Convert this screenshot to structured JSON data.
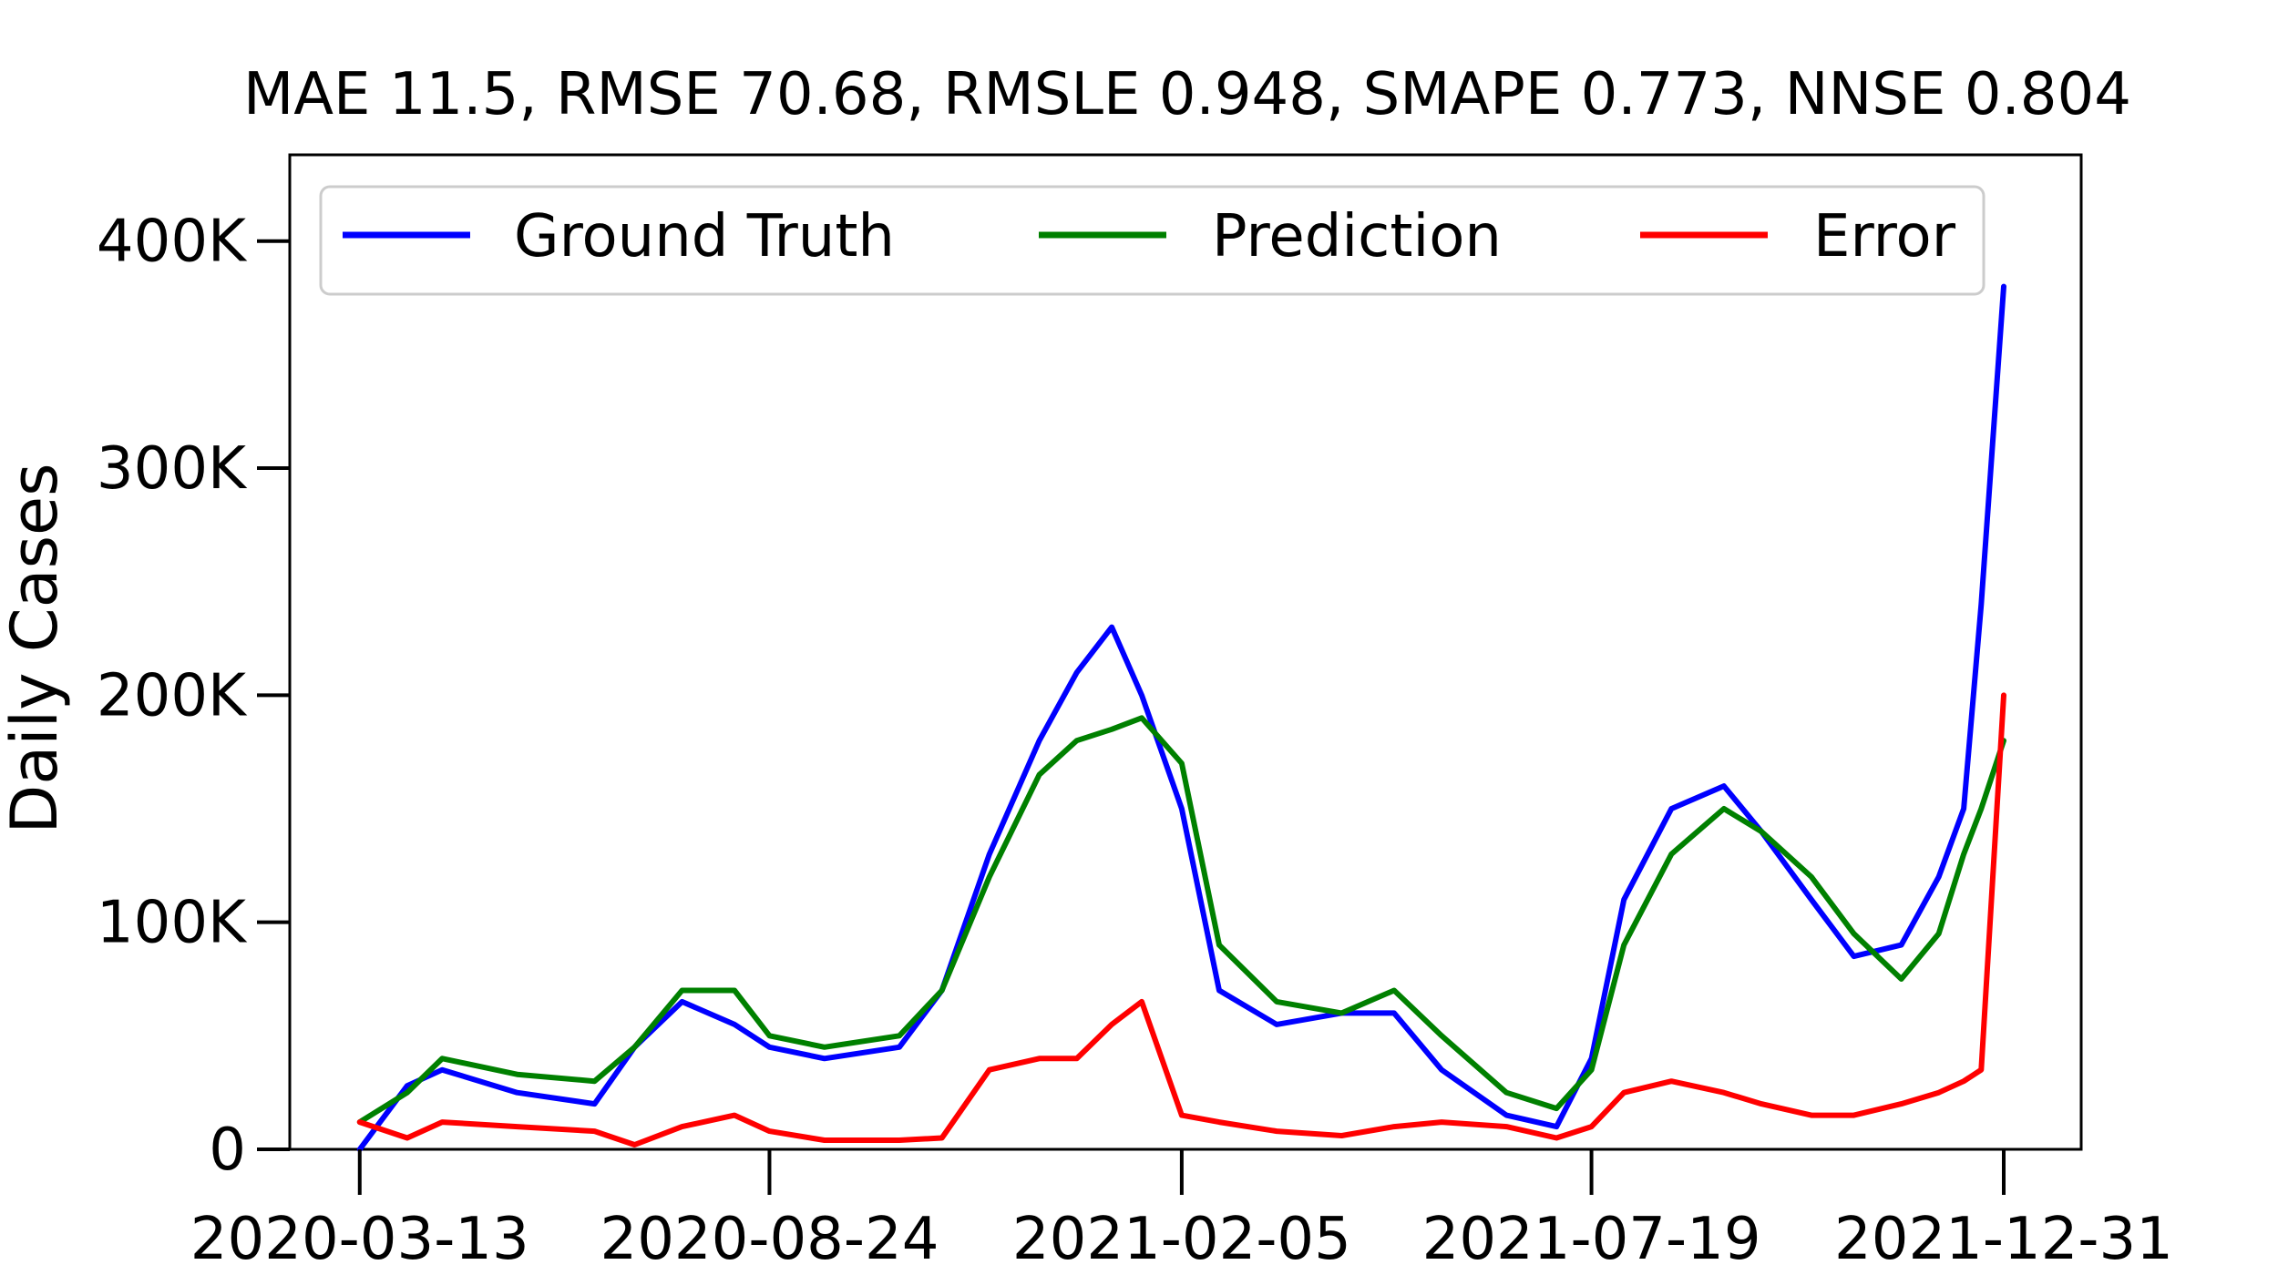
{
  "chart_data": {
    "type": "line",
    "title": "MAE 11.5, RMSE 70.68, RMSLE 0.948, SMAPE 0.773, NNSE 0.804",
    "xlabel": "",
    "ylabel": "Daily Cases",
    "x_ticks": [
      "2020-03-13",
      "2020-08-24",
      "2021-02-05",
      "2021-07-19",
      "2021-12-31"
    ],
    "y_ticks": [
      "0",
      "100K",
      "200K",
      "300K",
      "400K"
    ],
    "y_tick_values": [
      0,
      100000,
      200000,
      300000,
      400000
    ],
    "xlim": [
      "2020-02-14",
      "2022-01-31"
    ],
    "ylim": [
      0,
      438000
    ],
    "legend": {
      "placement": "top, inside plot",
      "entries": [
        "Ground Truth",
        "Prediction",
        "Error"
      ]
    },
    "grid": false,
    "series": [
      {
        "name": "Ground Truth",
        "color": "#0000ff",
        "x": [
          "2020-03-13",
          "2020-04-01",
          "2020-04-15",
          "2020-05-15",
          "2020-06-15",
          "2020-07-01",
          "2020-07-20",
          "2020-08-10",
          "2020-08-24",
          "2020-09-15",
          "2020-10-15",
          "2020-11-01",
          "2020-11-20",
          "2020-12-10",
          "2020-12-25",
          "2021-01-08",
          "2021-01-20",
          "2021-02-05",
          "2021-02-20",
          "2021-03-15",
          "2021-04-10",
          "2021-05-01",
          "2021-05-20",
          "2021-06-15",
          "2021-07-05",
          "2021-07-19",
          "2021-08-01",
          "2021-08-20",
          "2021-09-10",
          "2021-09-25",
          "2021-10-15",
          "2021-11-01",
          "2021-11-20",
          "2021-12-05",
          "2021-12-15",
          "2021-12-22",
          "2021-12-31"
        ],
        "y": [
          0,
          28000,
          35000,
          25000,
          20000,
          45000,
          65000,
          55000,
          45000,
          40000,
          45000,
          70000,
          130000,
          180000,
          210000,
          230000,
          200000,
          150000,
          70000,
          55000,
          60000,
          60000,
          35000,
          15000,
          10000,
          40000,
          110000,
          150000,
          160000,
          140000,
          110000,
          85000,
          90000,
          120000,
          150000,
          240000,
          380000
        ]
      },
      {
        "name": "Prediction",
        "color": "#008000",
        "x": [
          "2020-03-13",
          "2020-04-01",
          "2020-04-15",
          "2020-05-15",
          "2020-06-15",
          "2020-07-01",
          "2020-07-20",
          "2020-08-10",
          "2020-08-24",
          "2020-09-15",
          "2020-10-15",
          "2020-11-01",
          "2020-11-20",
          "2020-12-10",
          "2020-12-25",
          "2021-01-08",
          "2021-01-20",
          "2021-02-05",
          "2021-02-20",
          "2021-03-15",
          "2021-04-10",
          "2021-05-01",
          "2021-05-20",
          "2021-06-15",
          "2021-07-05",
          "2021-07-19",
          "2021-08-01",
          "2021-08-20",
          "2021-09-10",
          "2021-09-25",
          "2021-10-15",
          "2021-11-01",
          "2021-11-20",
          "2021-12-05",
          "2021-12-15",
          "2021-12-22",
          "2021-12-31"
        ],
        "y": [
          12000,
          25000,
          40000,
          33000,
          30000,
          45000,
          70000,
          70000,
          50000,
          45000,
          50000,
          70000,
          120000,
          165000,
          180000,
          185000,
          190000,
          170000,
          90000,
          65000,
          60000,
          70000,
          50000,
          25000,
          18000,
          35000,
          90000,
          130000,
          150000,
          140000,
          120000,
          95000,
          75000,
          95000,
          130000,
          150000,
          180000
        ]
      },
      {
        "name": "Error",
        "color": "#ff0000",
        "x": [
          "2020-03-13",
          "2020-04-01",
          "2020-04-15",
          "2020-05-15",
          "2020-06-15",
          "2020-07-01",
          "2020-07-20",
          "2020-08-10",
          "2020-08-24",
          "2020-09-15",
          "2020-10-15",
          "2020-11-01",
          "2020-11-20",
          "2020-12-10",
          "2020-12-25",
          "2021-01-08",
          "2021-01-20",
          "2021-02-05",
          "2021-02-20",
          "2021-03-15",
          "2021-04-10",
          "2021-05-01",
          "2021-05-20",
          "2021-06-15",
          "2021-07-05",
          "2021-07-19",
          "2021-08-01",
          "2021-08-20",
          "2021-09-10",
          "2021-09-25",
          "2021-10-15",
          "2021-11-01",
          "2021-11-20",
          "2021-12-05",
          "2021-12-15",
          "2021-12-22",
          "2021-12-31"
        ],
        "y": [
          12000,
          5000,
          12000,
          10000,
          8000,
          2000,
          10000,
          15000,
          8000,
          4000,
          4000,
          5000,
          35000,
          40000,
          40000,
          55000,
          65000,
          15000,
          12000,
          8000,
          6000,
          10000,
          12000,
          10000,
          5000,
          10000,
          25000,
          30000,
          25000,
          20000,
          15000,
          15000,
          20000,
          25000,
          30000,
          35000,
          200000
        ]
      }
    ]
  }
}
